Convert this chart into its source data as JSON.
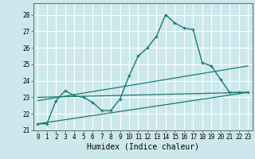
{
  "title": "",
  "xlabel": "Humidex (Indice chaleur)",
  "xlim": [
    -0.5,
    23.5
  ],
  "ylim": [
    21.0,
    28.7
  ],
  "yticks": [
    21,
    22,
    23,
    24,
    25,
    26,
    27,
    28
  ],
  "xticks": [
    0,
    1,
    2,
    3,
    4,
    5,
    6,
    7,
    8,
    9,
    10,
    11,
    12,
    13,
    14,
    15,
    16,
    17,
    18,
    19,
    20,
    21,
    22,
    23
  ],
  "bg_color": "#cce8ec",
  "line_color": "#1a7a6e",
  "grid_color": "#ffffff",
  "series1_x": [
    0,
    1,
    2,
    3,
    4,
    5,
    6,
    7,
    8,
    9,
    10,
    11,
    12,
    13,
    14,
    15,
    16,
    17,
    18,
    19,
    20,
    21,
    22,
    23
  ],
  "series1_y": [
    21.4,
    21.4,
    22.8,
    23.4,
    23.1,
    23.0,
    22.7,
    22.2,
    22.2,
    22.9,
    24.3,
    25.5,
    26.0,
    26.7,
    28.0,
    27.5,
    27.2,
    27.1,
    25.1,
    24.9,
    24.1,
    23.3,
    23.3,
    23.3
  ],
  "series2_x": [
    0,
    23
  ],
  "series2_y": [
    21.4,
    23.3
  ],
  "series3_x": [
    0,
    23
  ],
  "series3_y": [
    22.8,
    24.9
  ],
  "series4_x": [
    0,
    23
  ],
  "series4_y": [
    23.0,
    23.3
  ],
  "tick_fontsize": 5.5,
  "xlabel_fontsize": 7.0
}
